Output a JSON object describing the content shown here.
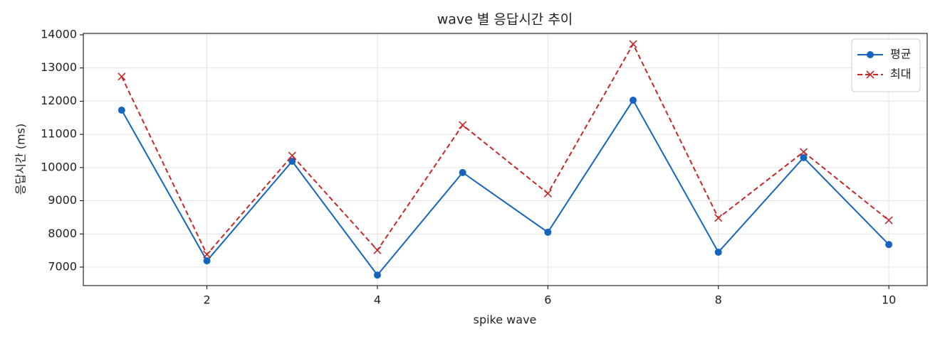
{
  "chart_data": {
    "type": "line",
    "title": "wave 별 응답시간 추이",
    "x_label": "spike wave",
    "y_label": "응답시간 (ms)",
    "x": [
      1,
      2,
      3,
      4,
      5,
      6,
      7,
      8,
      9,
      10
    ],
    "series": [
      {
        "name": "평균",
        "color": "#1565c0",
        "marker": "circle",
        "linestyle": "solid",
        "values": [
          11730,
          7190,
          10190,
          6760,
          9850,
          8050,
          12030,
          7450,
          10300,
          7680
        ]
      },
      {
        "name": "최대",
        "color": "#c62828",
        "marker": "x",
        "linestyle": "dashed",
        "values": [
          12740,
          7380,
          10360,
          7510,
          11280,
          9220,
          13720,
          8480,
          10470,
          8410
        ]
      }
    ],
    "xlim": [
      0.55,
      10.45
    ],
    "xticks": [
      2,
      4,
      6,
      8,
      10
    ],
    "ylim": [
      6443,
      14043
    ],
    "yticks": [
      7000,
      8000,
      9000,
      10000,
      11000,
      12000,
      13000,
      14000
    ],
    "grid": true,
    "legend": "upper right"
  }
}
